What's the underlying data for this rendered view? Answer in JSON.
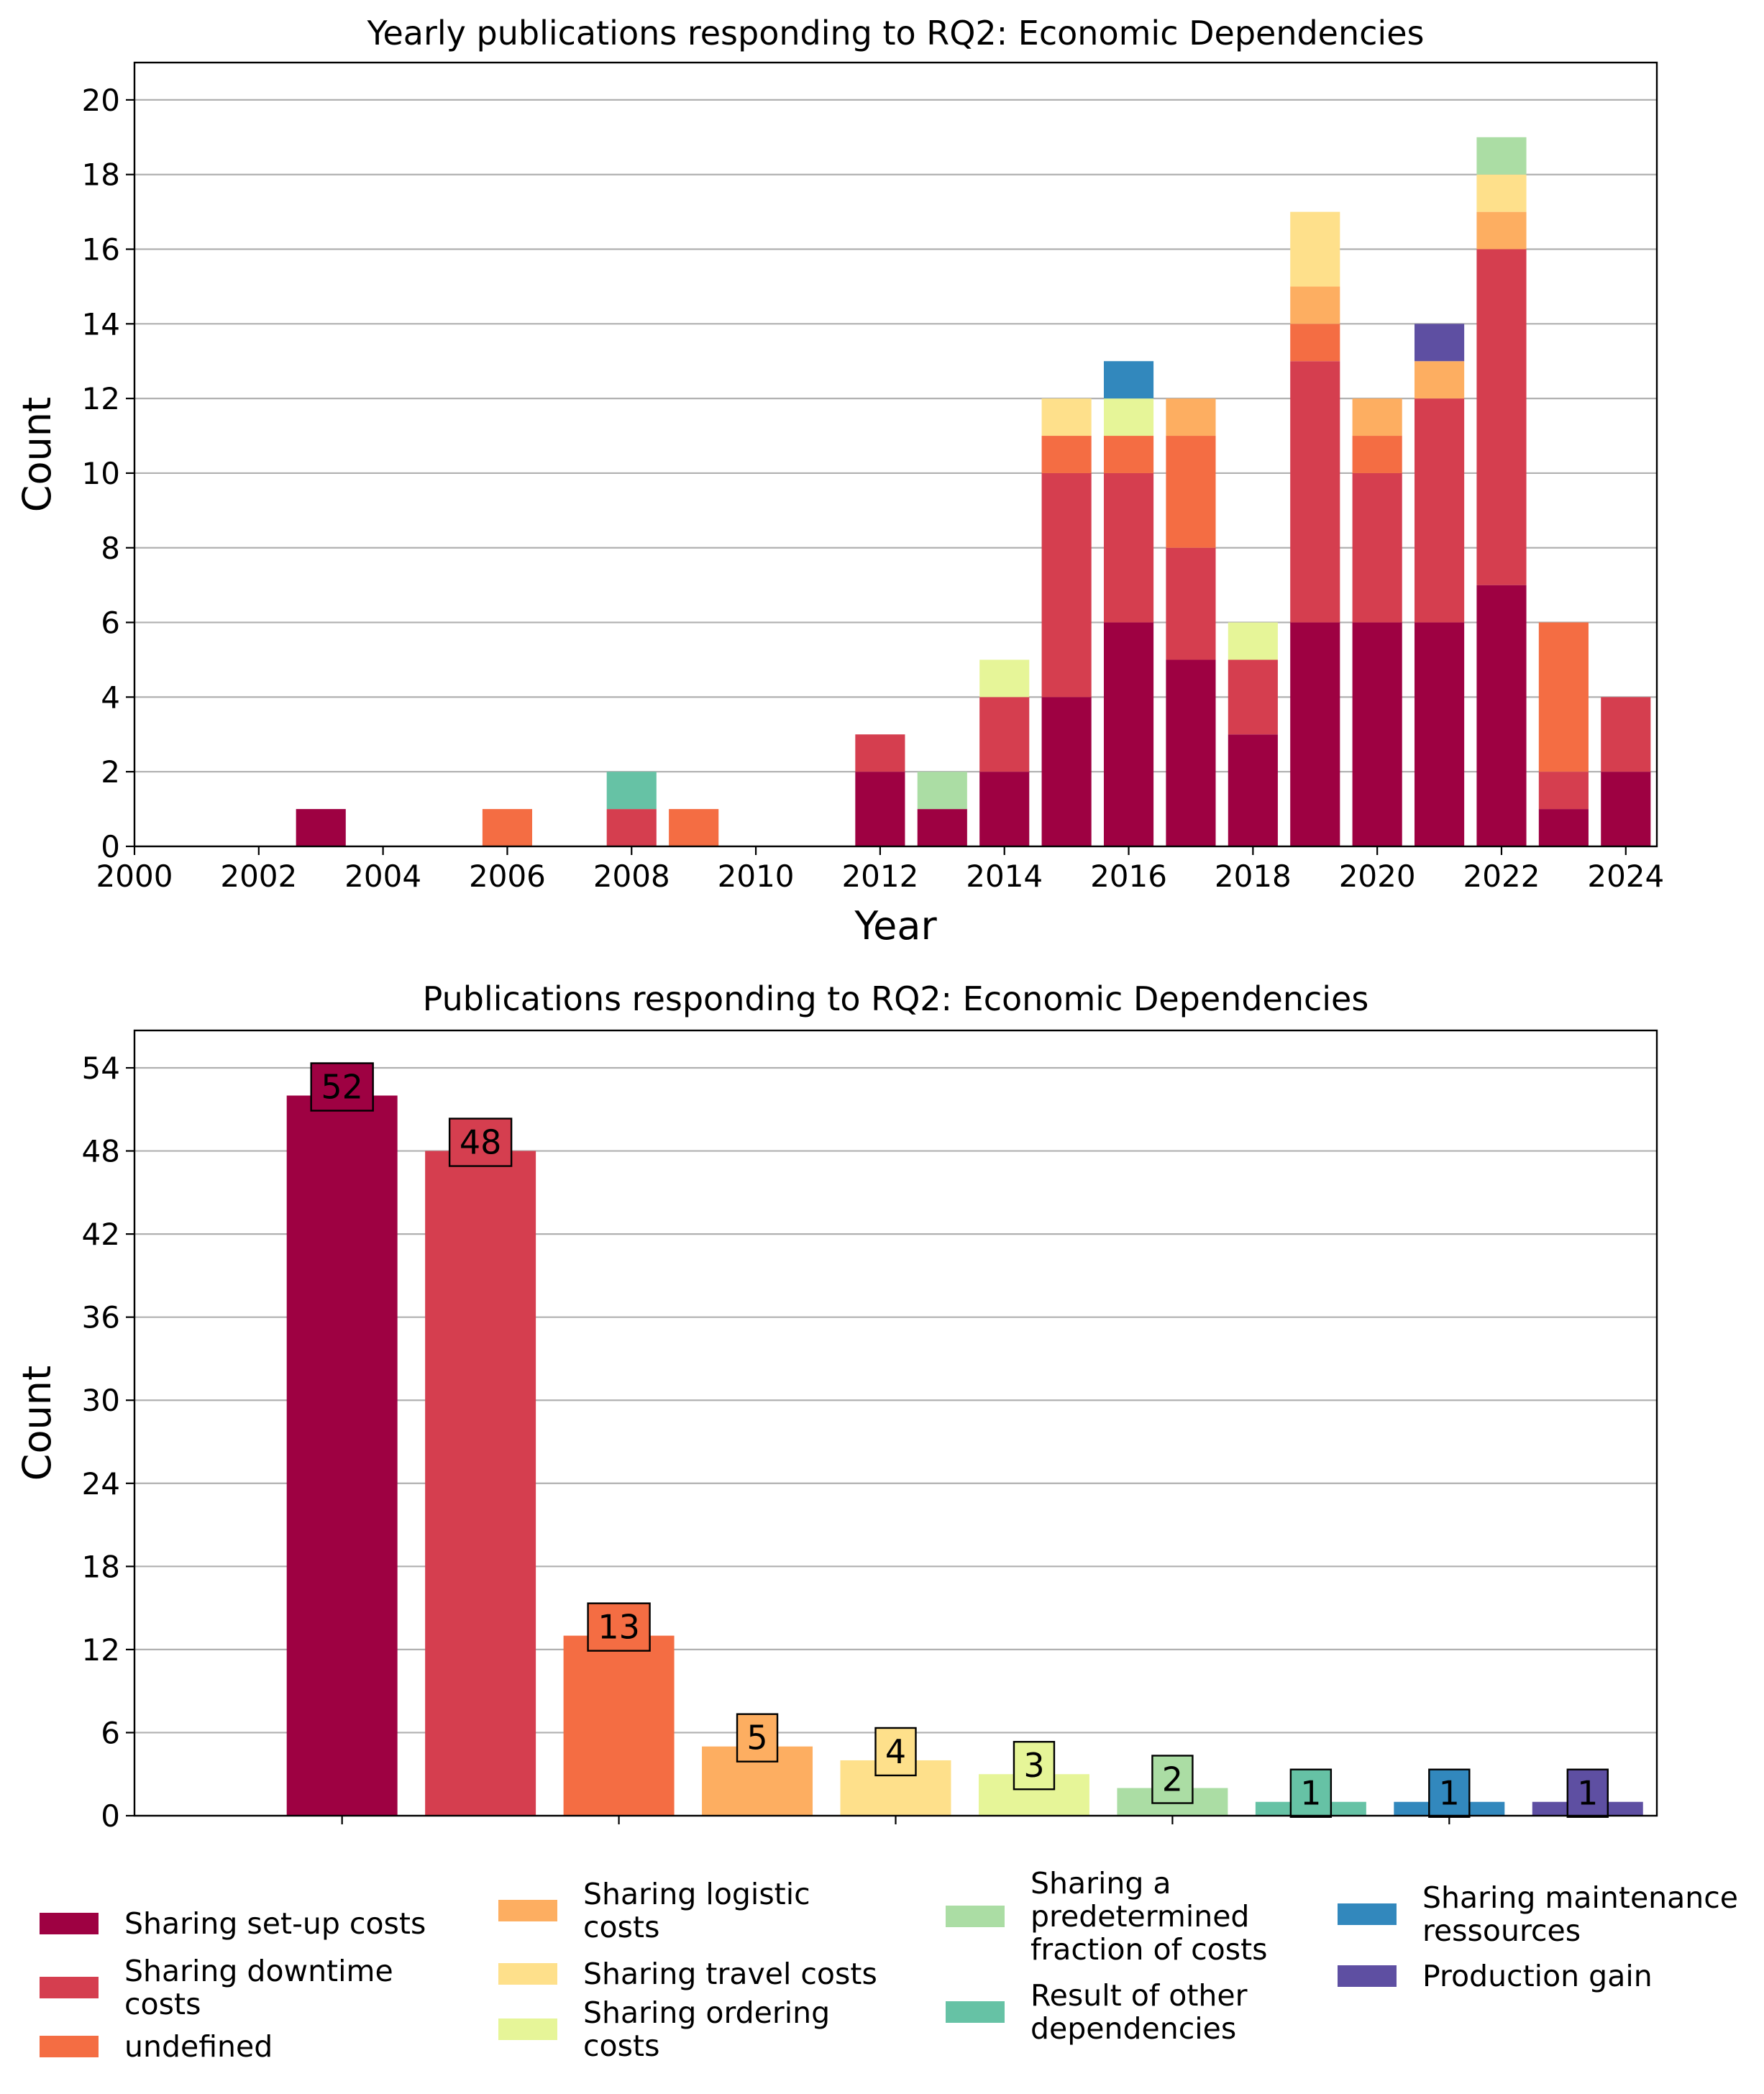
{
  "colors": {
    "Sharing set-up costs": "#9e0142",
    "Sharing downtime costs": "#d53e4f",
    "undefined": "#f46d43",
    "Sharing logistic costs": "#fdae61",
    "Sharing travel costs": "#fee08b",
    "Sharing ordering costs": "#e6f598",
    "Sharing a predetermined fraction of costs": "#abdda4",
    "Result of other dependencies": "#66c2a5",
    "Sharing maintenance ressources": "#3288bd",
    "Production gain": "#5e4fa2"
  },
  "chart_data": [
    {
      "type": "bar",
      "stacked": true,
      "title": "Yearly publications responding to RQ2: Economic Dependencies",
      "xlabel": "Year",
      "ylabel": "Count",
      "xlim": [
        2000,
        2024.5
      ],
      "ylim": [
        0,
        21
      ],
      "xticks": [
        2000,
        2002,
        2004,
        2006,
        2008,
        2010,
        2012,
        2014,
        2016,
        2018,
        2020,
        2022,
        2024
      ],
      "yticks": [
        0,
        2,
        4,
        6,
        8,
        10,
        12,
        14,
        16,
        18,
        20
      ],
      "grid": "horizontal",
      "x": [
        2003,
        2006,
        2008,
        2009,
        2012,
        2013,
        2014,
        2015,
        2016,
        2017,
        2018,
        2019,
        2020,
        2021,
        2022,
        2023,
        2024
      ],
      "series": [
        {
          "name": "Sharing set-up costs",
          "values": [
            1,
            0,
            0,
            0,
            2,
            1,
            2,
            4,
            6,
            5,
            3,
            6,
            6,
            6,
            7,
            1,
            2
          ]
        },
        {
          "name": "Sharing downtime costs",
          "values": [
            0,
            0,
            1,
            0,
            1,
            0,
            2,
            6,
            4,
            3,
            2,
            7,
            4,
            6,
            9,
            1,
            2
          ]
        },
        {
          "name": "undefined",
          "values": [
            0,
            1,
            0,
            1,
            0,
            0,
            0,
            1,
            1,
            3,
            0,
            1,
            1,
            0,
            0,
            4,
            0
          ]
        },
        {
          "name": "Sharing logistic costs",
          "values": [
            0,
            0,
            0,
            0,
            0,
            0,
            0,
            0,
            0,
            1,
            0,
            1,
            1,
            1,
            1,
            0,
            0
          ]
        },
        {
          "name": "Sharing travel costs",
          "values": [
            0,
            0,
            0,
            0,
            0,
            0,
            0,
            1,
            0,
            0,
            0,
            2,
            0,
            0,
            1,
            0,
            0
          ]
        },
        {
          "name": "Sharing ordering costs",
          "values": [
            0,
            0,
            0,
            0,
            0,
            0,
            1,
            0,
            1,
            0,
            1,
            0,
            0,
            0,
            0,
            0,
            0
          ]
        },
        {
          "name": "Sharing a predetermined fraction of costs",
          "values": [
            0,
            0,
            0,
            0,
            0,
            1,
            0,
            0,
            0,
            0,
            0,
            0,
            0,
            0,
            1,
            0,
            0
          ]
        },
        {
          "name": "Result of other dependencies",
          "values": [
            0,
            0,
            1,
            0,
            0,
            0,
            0,
            0,
            0,
            0,
            0,
            0,
            0,
            0,
            0,
            0,
            0
          ]
        },
        {
          "name": "Sharing maintenance ressources",
          "values": [
            0,
            0,
            0,
            0,
            0,
            0,
            0,
            0,
            1,
            0,
            0,
            0,
            0,
            0,
            0,
            0,
            0
          ]
        },
        {
          "name": "Production gain",
          "values": [
            0,
            0,
            0,
            0,
            0,
            0,
            0,
            0,
            0,
            0,
            0,
            0,
            0,
            1,
            0,
            0,
            0
          ]
        }
      ]
    },
    {
      "type": "bar",
      "title": "Publications responding to RQ2: Economic Dependencies",
      "ylabel": "Count",
      "ylim": [
        0,
        56.7
      ],
      "yticks": [
        0,
        6,
        12,
        18,
        24,
        30,
        36,
        42,
        48,
        54
      ],
      "grid": "horizontal",
      "categories": [
        "Sharing set-up costs",
        "Sharing downtime costs",
        "undefined",
        "Sharing logistic costs",
        "Sharing travel costs",
        "Sharing ordering costs",
        "Sharing a predetermined fraction of costs",
        "Result of other dependencies",
        "Sharing maintenance ressources",
        "Production gain"
      ],
      "values": [
        52,
        48,
        13,
        5,
        4,
        3,
        2,
        1,
        1,
        1
      ],
      "data_labels": [
        "52",
        "48",
        "13",
        "5",
        "4",
        "3",
        "2",
        "1",
        "1",
        "1"
      ]
    }
  ],
  "legend": {
    "placement": "bottom",
    "entries": [
      {
        "key": "Sharing set-up costs",
        "label": "Sharing set-up costs"
      },
      {
        "key": "Sharing downtime costs",
        "label": "Sharing downtime\ncosts"
      },
      {
        "key": "undefined",
        "label": "undefined"
      },
      {
        "key": "Sharing logistic costs",
        "label": "Sharing logistic\ncosts"
      },
      {
        "key": "Sharing travel costs",
        "label": "Sharing travel costs"
      },
      {
        "key": "Sharing ordering costs",
        "label": "Sharing ordering\ncosts"
      },
      {
        "key": "Sharing a predetermined fraction of costs",
        "label": "Sharing a\npredetermined\nfraction of costs"
      },
      {
        "key": "Result of other dependencies",
        "label": "Result of other\ndependencies"
      },
      {
        "key": "Sharing maintenance ressources",
        "label": "Sharing maintenance\nressources"
      },
      {
        "key": "Production gain",
        "label": "Production gain"
      }
    ]
  }
}
